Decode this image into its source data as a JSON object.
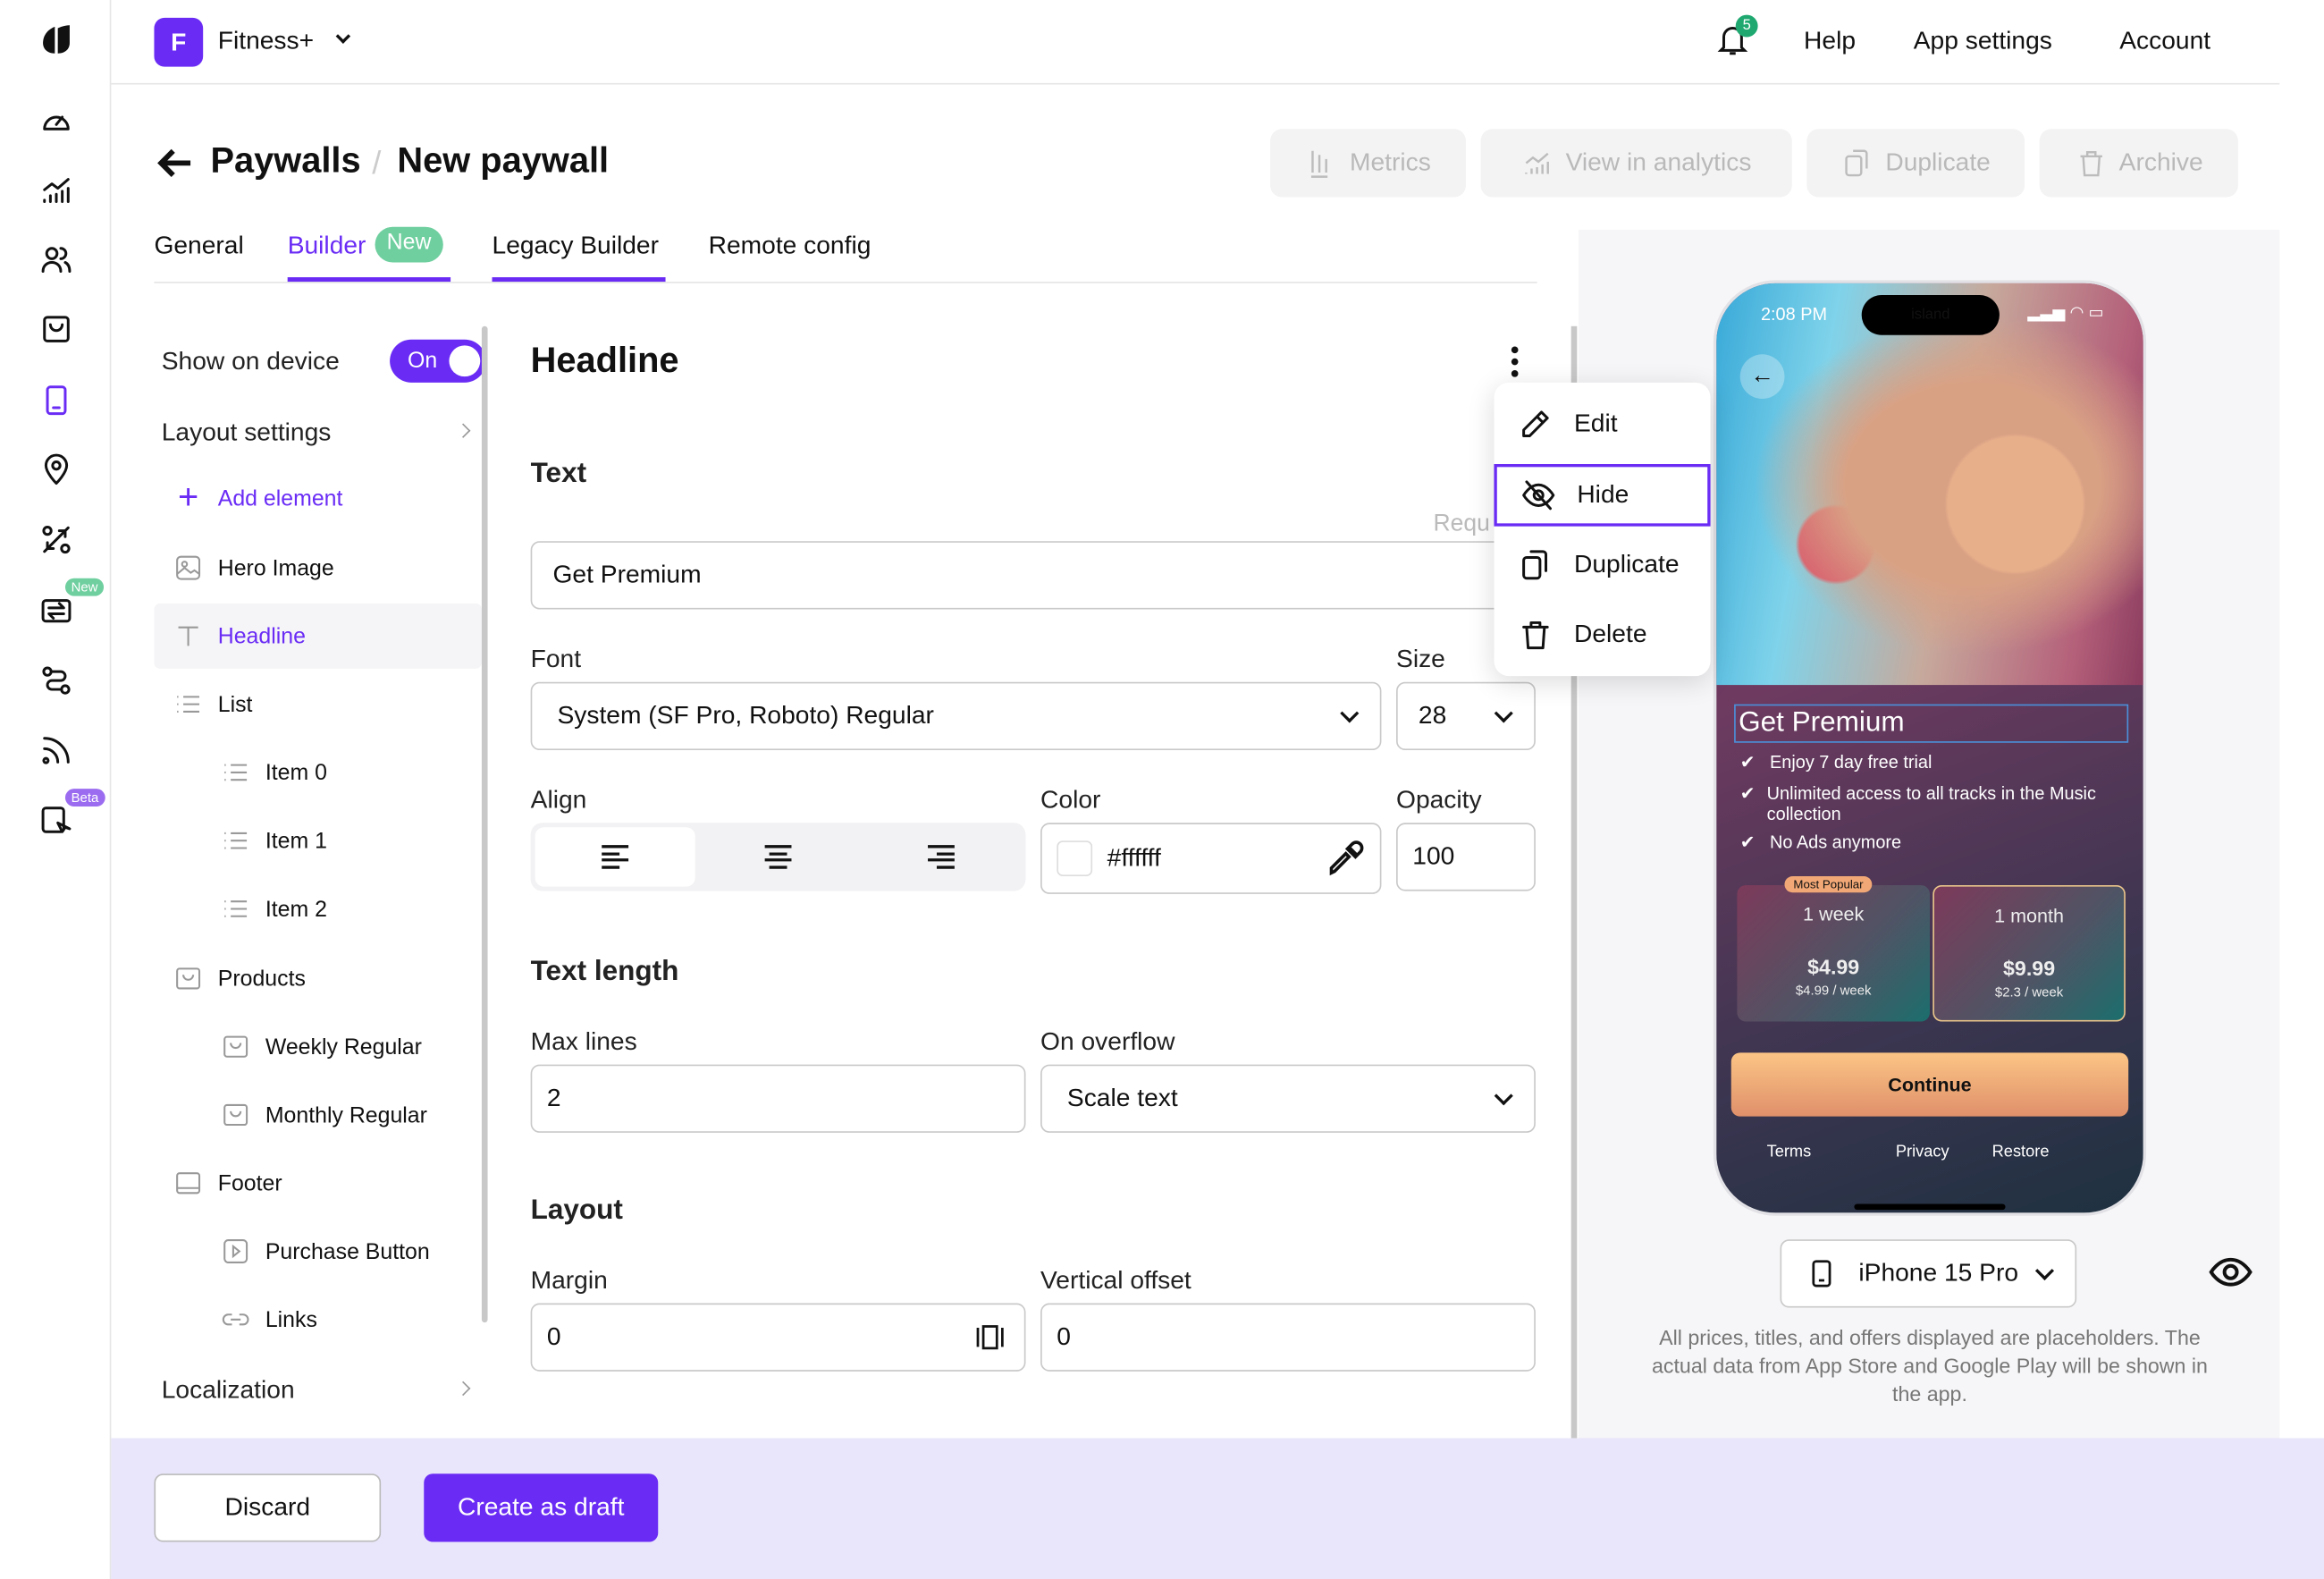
{
  "app": {
    "initial": "F",
    "name": "Fitness+",
    "accent": "#6a2cf5"
  },
  "rail": {
    "new_badge": "New",
    "beta_badge": "Beta",
    "icons": [
      "logo-icon",
      "dashboard-icon",
      "analytics-icon",
      "users-icon",
      "products-icon",
      "paywalls-icon",
      "placements-icon",
      "ab-tests-icon",
      "transfers-icon",
      "flows-icon",
      "feed-icon",
      "builder-icon"
    ]
  },
  "topbar": {
    "notifications_count": "5",
    "help": "Help",
    "app_settings": "App settings",
    "account": "Account"
  },
  "header": {
    "breadcrumb_parent": "Paywalls",
    "separator": "/",
    "title": "New paywall",
    "actions": [
      "Metrics",
      "View in analytics",
      "Duplicate",
      "Archive"
    ]
  },
  "tabs": [
    {
      "label": "General"
    },
    {
      "label": "Builder",
      "badge": "New",
      "active": true
    },
    {
      "label": "Legacy Builder"
    },
    {
      "label": "Remote config"
    }
  ],
  "tree": {
    "show_on_device": "Show on device",
    "toggle": "On",
    "layout_settings": "Layout settings",
    "add_element": "Add element",
    "items": [
      "Hero Image",
      "Headline",
      "List",
      "Item 0",
      "Item 1",
      "Item 2",
      "Products",
      "Weekly Regular",
      "Monthly Regular",
      "Footer",
      "Purchase Button",
      "Links"
    ],
    "localization": "Localization"
  },
  "editor": {
    "title": "Headline",
    "text_section": "Text",
    "required": "Requ",
    "text_value": "Get Premium",
    "font_label": "Font",
    "font_value": "System (SF Pro, Roboto) Regular",
    "size_label": "Size",
    "size_value": "28",
    "align_label": "Align",
    "color_label": "Color",
    "color_value": "#ffffff",
    "opacity_label": "Opacity",
    "opacity_value": "100",
    "text_length": "Text length",
    "max_lines_label": "Max lines",
    "max_lines_value": "2",
    "overflow_label": "On overflow",
    "overflow_value": "Scale text",
    "layout": "Layout",
    "margin_label": "Margin",
    "margin_value": "0",
    "voffset_label": "Vertical offset",
    "voffset_value": "0"
  },
  "context_menu": [
    "Edit",
    "Hide",
    "Duplicate",
    "Delete"
  ],
  "preview": {
    "time": "2:08 PM",
    "island": "island",
    "headline": "Get Premium",
    "features": [
      "Enjoy 7 day free trial",
      "Unlimited access to all tracks in the Music collection",
      "No Ads anymore"
    ],
    "plans": [
      {
        "badge": "Most Popular",
        "period": "1 week",
        "price": "$4.99",
        "per": "$4.99 / week"
      },
      {
        "period": "1 month",
        "price": "$9.99",
        "per": "$2.3 / week"
      }
    ],
    "cta": "Continue",
    "links": [
      "Terms",
      "Privacy",
      "Restore"
    ],
    "device": "iPhone 15 Pro",
    "disclaimer": "All prices, titles, and offers displayed are placeholders. The actual data from App Store and Google Play will be shown in the app."
  },
  "footer": {
    "discard": "Discard",
    "create": "Create as draft"
  }
}
